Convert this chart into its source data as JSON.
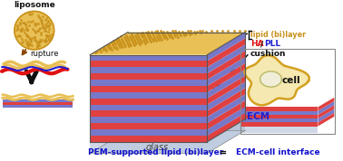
{
  "bg_color": "#ffffff",
  "liposome_color": "#E8C055",
  "liposome_dot_color": "#C8901A",
  "lipid_top_color": "#E8C055",
  "lipid_top_dot_color": "#C8901A",
  "stripe_color1": "#E04040",
  "stripe_color2": "#7878C8",
  "pll_color": "#2020D0",
  "ha_color": "#E01010",
  "glass_color": "#D0D8E8",
  "glass_side_color": "#B8C4D8",
  "arrow_color": "#8B4500",
  "big_arrow_color": "#101010",
  "label_lipid": "lipid (bi)layer",
  "label_ha": "HA",
  "label_pll": "PLL",
  "label_cushion": "cushion",
  "label_glass": "glass",
  "label_ecm": "ECM",
  "label_cell": "cell",
  "label_liposome": "liposome",
  "label_rupture": "rupture",
  "label_bottom_pem": "PEM-supported lipid (bi)layer",
  "label_bottom_eq": "=",
  "label_bottom_ecm": "ECM-cell interface",
  "cell_bg": "#F5E8B0",
  "cell_border": "#D4A020",
  "cell_nucleus_bg": "#F0EED8",
  "cell_nucleus_border": "#B8B860",
  "cell_box_color": "#888888",
  "label_color_gold": "#C8901A",
  "label_color_red": "#E01010",
  "label_color_blue": "#2020D0",
  "label_color_black": "#111111",
  "label_color_bottom": "#1010CC"
}
